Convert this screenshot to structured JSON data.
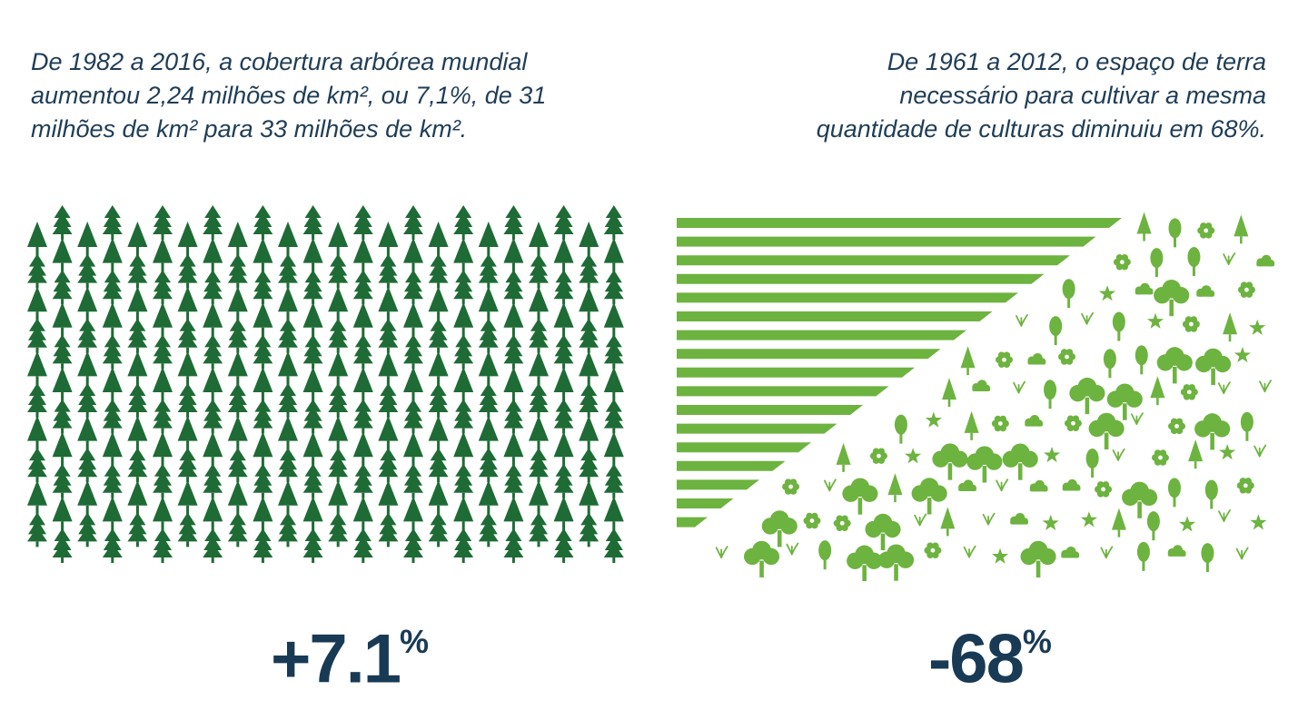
{
  "left_panel": {
    "caption_lines": [
      "De 1982 a 2016, a cobertura arbórea mundial",
      "aumentou 2,24 milhões de km², ou 7,1%, de 31",
      "milhões de km² para 33 milhões de km²."
    ],
    "stat_value": "+7.1",
    "stat_unit": "%",
    "icon": "pine-tree-grid",
    "color": "#1e6b35"
  },
  "right_panel": {
    "caption_lines": [
      "De 1961 a 2012, o espaço de terra",
      "necessário para cultivar a mesma",
      "quantidade de culturas diminuiu em 68%."
    ],
    "stat_value": "-68",
    "stat_unit": "%",
    "icon": "crop-stripes-and-nature",
    "color": "#6db33f"
  },
  "text_color": "#1f3d57"
}
